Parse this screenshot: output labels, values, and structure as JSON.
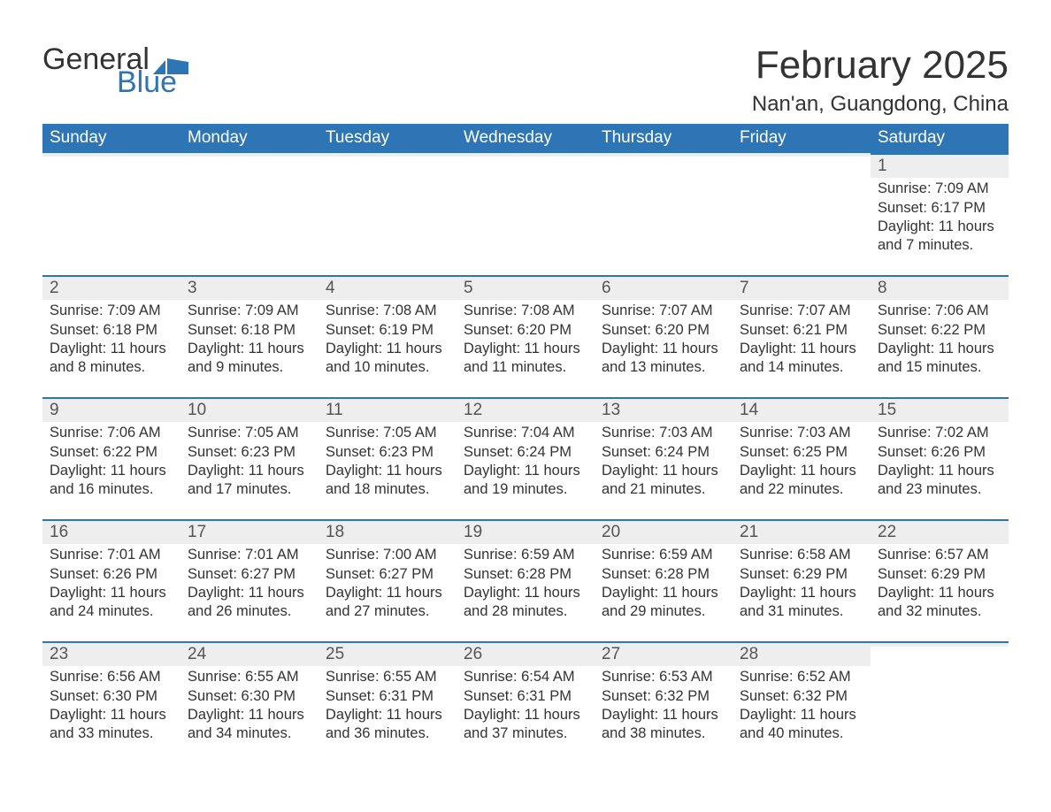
{
  "logo": {
    "text1": "General",
    "text2": "Blue",
    "flag_color": "#2e75b6"
  },
  "title": "February 2025",
  "location": "Nan'an, Guangdong, China",
  "colors": {
    "header_bg": "#2e75b6",
    "header_text": "#ffffff",
    "daynum_bg": "#eeeeee",
    "daynum_border": "#2e75b6",
    "text": "#333333"
  },
  "weekdays": [
    "Sunday",
    "Monday",
    "Tuesday",
    "Wednesday",
    "Thursday",
    "Friday",
    "Saturday"
  ],
  "weeks": [
    [
      {
        "empty": true
      },
      {
        "empty": true
      },
      {
        "empty": true
      },
      {
        "empty": true
      },
      {
        "empty": true
      },
      {
        "empty": true
      },
      {
        "day": 1,
        "sunrise": "7:09 AM",
        "sunset": "6:17 PM",
        "daylight": "11 hours and 7 minutes."
      }
    ],
    [
      {
        "day": 2,
        "sunrise": "7:09 AM",
        "sunset": "6:18 PM",
        "daylight": "11 hours and 8 minutes."
      },
      {
        "day": 3,
        "sunrise": "7:09 AM",
        "sunset": "6:18 PM",
        "daylight": "11 hours and 9 minutes."
      },
      {
        "day": 4,
        "sunrise": "7:08 AM",
        "sunset": "6:19 PM",
        "daylight": "11 hours and 10 minutes."
      },
      {
        "day": 5,
        "sunrise": "7:08 AM",
        "sunset": "6:20 PM",
        "daylight": "11 hours and 11 minutes."
      },
      {
        "day": 6,
        "sunrise": "7:07 AM",
        "sunset": "6:20 PM",
        "daylight": "11 hours and 13 minutes."
      },
      {
        "day": 7,
        "sunrise": "7:07 AM",
        "sunset": "6:21 PM",
        "daylight": "11 hours and 14 minutes."
      },
      {
        "day": 8,
        "sunrise": "7:06 AM",
        "sunset": "6:22 PM",
        "daylight": "11 hours and 15 minutes."
      }
    ],
    [
      {
        "day": 9,
        "sunrise": "7:06 AM",
        "sunset": "6:22 PM",
        "daylight": "11 hours and 16 minutes."
      },
      {
        "day": 10,
        "sunrise": "7:05 AM",
        "sunset": "6:23 PM",
        "daylight": "11 hours and 17 minutes."
      },
      {
        "day": 11,
        "sunrise": "7:05 AM",
        "sunset": "6:23 PM",
        "daylight": "11 hours and 18 minutes."
      },
      {
        "day": 12,
        "sunrise": "7:04 AM",
        "sunset": "6:24 PM",
        "daylight": "11 hours and 19 minutes."
      },
      {
        "day": 13,
        "sunrise": "7:03 AM",
        "sunset": "6:24 PM",
        "daylight": "11 hours and 21 minutes."
      },
      {
        "day": 14,
        "sunrise": "7:03 AM",
        "sunset": "6:25 PM",
        "daylight": "11 hours and 22 minutes."
      },
      {
        "day": 15,
        "sunrise": "7:02 AM",
        "sunset": "6:26 PM",
        "daylight": "11 hours and 23 minutes."
      }
    ],
    [
      {
        "day": 16,
        "sunrise": "7:01 AM",
        "sunset": "6:26 PM",
        "daylight": "11 hours and 24 minutes."
      },
      {
        "day": 17,
        "sunrise": "7:01 AM",
        "sunset": "6:27 PM",
        "daylight": "11 hours and 26 minutes."
      },
      {
        "day": 18,
        "sunrise": "7:00 AM",
        "sunset": "6:27 PM",
        "daylight": "11 hours and 27 minutes."
      },
      {
        "day": 19,
        "sunrise": "6:59 AM",
        "sunset": "6:28 PM",
        "daylight": "11 hours and 28 minutes."
      },
      {
        "day": 20,
        "sunrise": "6:59 AM",
        "sunset": "6:28 PM",
        "daylight": "11 hours and 29 minutes."
      },
      {
        "day": 21,
        "sunrise": "6:58 AM",
        "sunset": "6:29 PM",
        "daylight": "11 hours and 31 minutes."
      },
      {
        "day": 22,
        "sunrise": "6:57 AM",
        "sunset": "6:29 PM",
        "daylight": "11 hours and 32 minutes."
      }
    ],
    [
      {
        "day": 23,
        "sunrise": "6:56 AM",
        "sunset": "6:30 PM",
        "daylight": "11 hours and 33 minutes."
      },
      {
        "day": 24,
        "sunrise": "6:55 AM",
        "sunset": "6:30 PM",
        "daylight": "11 hours and 34 minutes."
      },
      {
        "day": 25,
        "sunrise": "6:55 AM",
        "sunset": "6:31 PM",
        "daylight": "11 hours and 36 minutes."
      },
      {
        "day": 26,
        "sunrise": "6:54 AM",
        "sunset": "6:31 PM",
        "daylight": "11 hours and 37 minutes."
      },
      {
        "day": 27,
        "sunrise": "6:53 AM",
        "sunset": "6:32 PM",
        "daylight": "11 hours and 38 minutes."
      },
      {
        "day": 28,
        "sunrise": "6:52 AM",
        "sunset": "6:32 PM",
        "daylight": "11 hours and 40 minutes."
      },
      {
        "empty": true
      }
    ]
  ],
  "labels": {
    "sunrise": "Sunrise: ",
    "sunset": "Sunset: ",
    "daylight": "Daylight: "
  }
}
